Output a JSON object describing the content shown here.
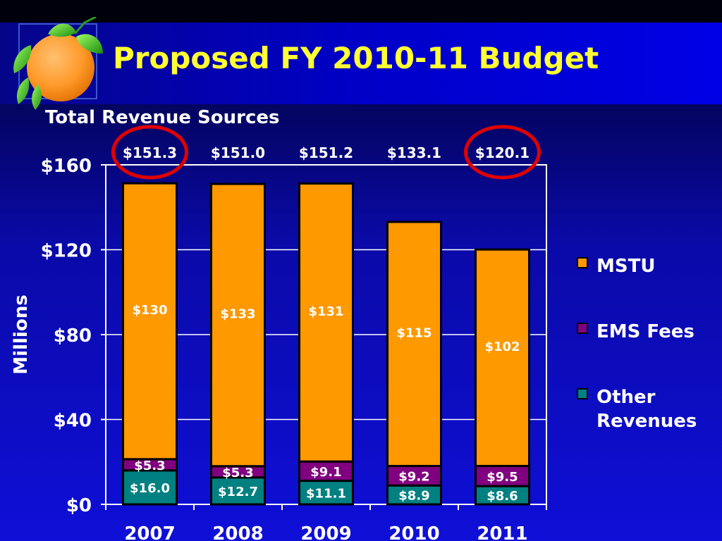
{
  "slide": {
    "title": "Proposed FY 2010-11 Budget"
  },
  "colors": {
    "mstu": "#ff9900",
    "ems_fees": "#800080",
    "other_revenues": "#008080",
    "title_text": "#ffff33",
    "highlight_circle": "#e00000"
  },
  "logo": {
    "icon": "orange-fruit-icon"
  },
  "chart_data": {
    "type": "bar",
    "stacked": true,
    "title": "Total Revenue Sources",
    "ylabel": "Millions",
    "xlabel": "",
    "categories": [
      "2007",
      "2008",
      "2009",
      "2010",
      "2011"
    ],
    "series": [
      {
        "name": "Other Revenues",
        "values": [
          16.0,
          12.7,
          11.1,
          8.9,
          8.6
        ],
        "labels": [
          "$16.0",
          "$12.7",
          "$11.1",
          "$8.9",
          "$8.6"
        ]
      },
      {
        "name": "EMS Fees",
        "values": [
          5.3,
          5.3,
          9.1,
          9.2,
          9.5
        ],
        "labels": [
          "$5.3",
          "$5.3",
          "$9.1",
          "$9.2",
          "$9.5"
        ]
      },
      {
        "name": "MSTU",
        "values": [
          130,
          133,
          131,
          115,
          102
        ],
        "labels": [
          "$130",
          "$133",
          "$131",
          "$115",
          "$102"
        ]
      }
    ],
    "totals": [
      151.3,
      151.0,
      151.2,
      133.1,
      120.1
    ],
    "total_labels": [
      "$151.3",
      "$151.0",
      "$151.2",
      "$133.1",
      "$120.1"
    ],
    "highlighted_totals": [
      "2007",
      "2011"
    ],
    "ylim": [
      0,
      160
    ],
    "yticks": [
      0,
      40,
      80,
      120,
      160
    ],
    "ytick_labels": [
      "$0",
      "$40",
      "$80",
      "$120",
      "$160"
    ],
    "grid": true,
    "legend": {
      "position": "right",
      "entries": [
        "MSTU",
        "EMS Fees",
        "Other Revenues"
      ],
      "lines": [
        [
          "MSTU"
        ],
        [
          "EMS Fees"
        ],
        [
          "Other",
          "Revenues"
        ]
      ]
    }
  }
}
